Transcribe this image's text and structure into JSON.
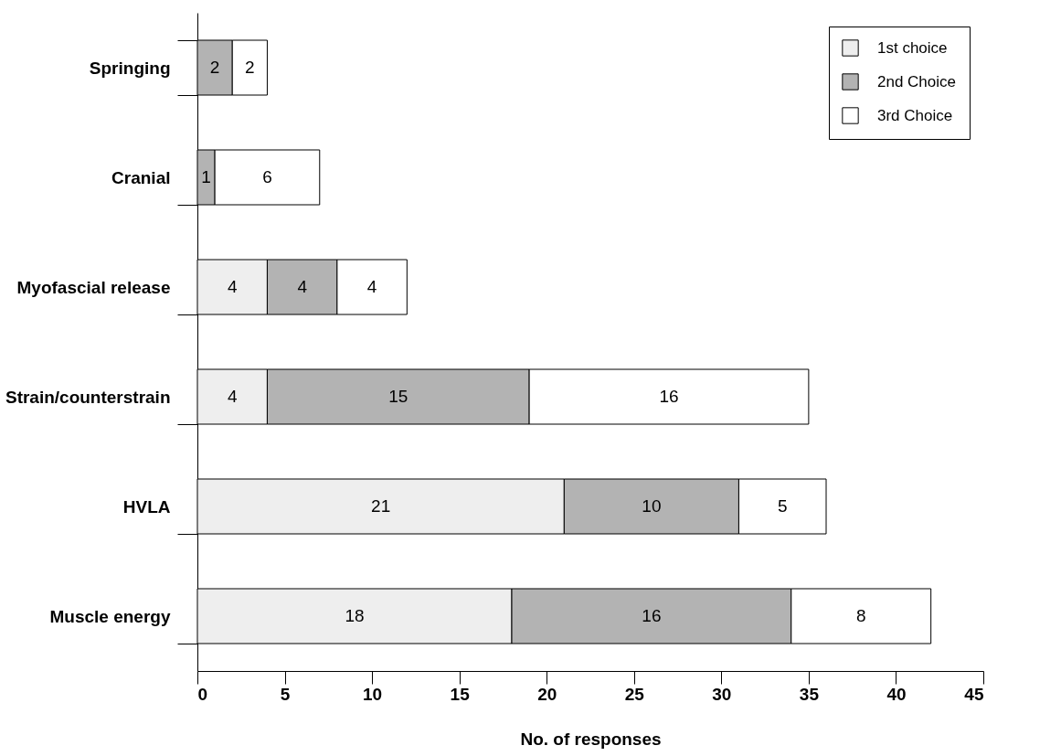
{
  "chart_data": {
    "type": "bar",
    "orientation": "horizontal",
    "stacked": true,
    "xlabel": "No. of responses",
    "categories": [
      "Springing",
      "Cranial",
      "Myofascial release",
      "Strain/counterstrain",
      "HVLA",
      "Muscle energy"
    ],
    "series": [
      {
        "name": "1st choice",
        "color": "#eeeeee",
        "values": [
          null,
          null,
          4,
          4,
          21,
          18
        ]
      },
      {
        "name": "2nd Choice",
        "color": "#b3b3b3",
        "values": [
          2,
          1,
          4,
          15,
          10,
          16
        ]
      },
      {
        "name": "3rd Choice",
        "color": "#ffffff",
        "values": [
          2,
          6,
          4,
          16,
          5,
          8
        ]
      }
    ],
    "xlim": [
      0,
      45
    ],
    "xticks": [
      0,
      5,
      10,
      15,
      20,
      25,
      30,
      35,
      40,
      45
    ],
    "data_labels": true,
    "legend": "top right",
    "grid": false
  }
}
